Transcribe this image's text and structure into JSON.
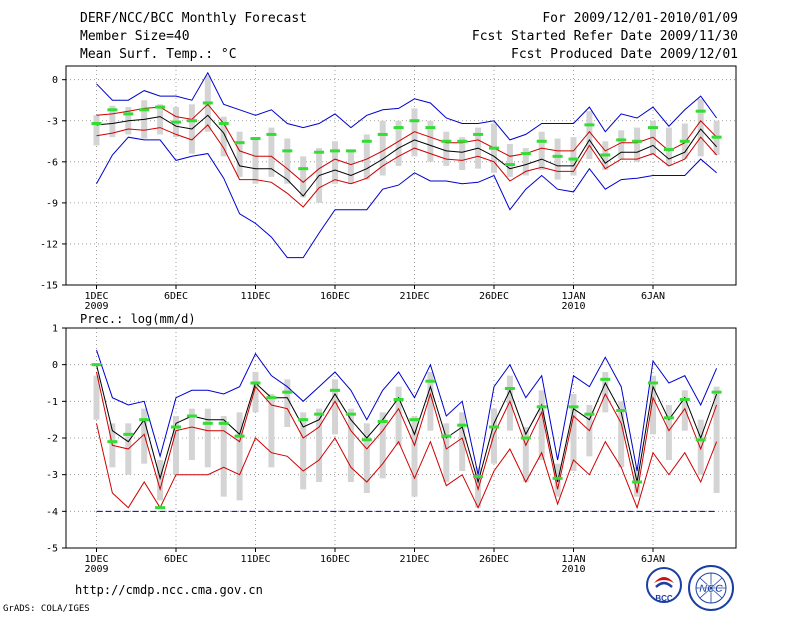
{
  "header": {
    "title": "DERF/NCC/BCC Monthly Forecast",
    "member_size": "Member Size=40",
    "variable": "Mean Surf. Temp.: °C",
    "period": "For 2009/12/01-2010/01/09",
    "started": "Fcst Started Refer Date 2009/11/30",
    "produced": "Fcst Produced Date 2009/12/01"
  },
  "footer": {
    "url": "http://cmdp.ncc.cma.gov.cn",
    "grads": "GrADS: COLA/IGES",
    "logo_bcc": "BCC",
    "logo_ncc": "NCC"
  },
  "colors": {
    "envelope": "#0000d0",
    "spread": "#d00000",
    "mean": "#000000",
    "box": "#d4d4d4",
    "median": "#33dd33",
    "dashed": "#0000a0"
  },
  "chart_data": [
    {
      "type": "line",
      "title": "Mean Surf. Temp.: °C",
      "ylim": [
        -15,
        1
      ],
      "yticks": [
        0,
        -3,
        -6,
        -9,
        -12,
        -15
      ],
      "x_tick_days": [
        1,
        6,
        11,
        16,
        21,
        26,
        31,
        36
      ],
      "x_tick_labels": [
        "1DEC",
        "6DEC",
        "11DEC",
        "16DEC",
        "21DEC",
        "26DEC",
        "1JAN",
        "6JAN"
      ],
      "x_year_labels": [
        {
          "day": 1,
          "label": "2009"
        },
        {
          "day": 31,
          "label": "2010"
        }
      ],
      "days": 40,
      "series": [
        {
          "name": "max",
          "values": [
            -0.3,
            -1.5,
            -1.5,
            -0.8,
            -1.2,
            -1.2,
            -1.5,
            0.5,
            -1.8,
            -2.2,
            -2.6,
            -2.2,
            -3.2,
            -3.5,
            -3.2,
            -2.5,
            -3.5,
            -2.6,
            -2.2,
            -2.1,
            -1.4,
            -1.7,
            -2.8,
            -3.2,
            -3.2,
            -3.0,
            -4.4,
            -4.0,
            -3.2,
            -3.2,
            -3.2,
            -2.0,
            -3.8,
            -2.5,
            -2.8,
            -2.0,
            -3.4,
            -2.2,
            -1.2,
            -2.8
          ]
        },
        {
          "name": "upper",
          "values": [
            -2.6,
            -2.5,
            -2.3,
            -2.1,
            -2.0,
            -2.7,
            -2.9,
            -1.8,
            -3.2,
            -5.2,
            -5.6,
            -5.6,
            -6.5,
            -7.5,
            -6.5,
            -5.8,
            -6.2,
            -5.8,
            -5.2,
            -4.5,
            -3.8,
            -4.2,
            -4.6,
            -4.6,
            -4.4,
            -5.0,
            -5.6,
            -5.4,
            -5.0,
            -5.2,
            -5.2,
            -3.8,
            -5.2,
            -4.6,
            -4.6,
            -4.2,
            -5.2,
            -4.6,
            -3.0,
            -4.2
          ]
        },
        {
          "name": "mean",
          "values": [
            -3.3,
            -3.2,
            -3.0,
            -2.9,
            -2.7,
            -3.4,
            -3.6,
            -2.6,
            -3.9,
            -6.3,
            -6.5,
            -6.5,
            -7.3,
            -8.5,
            -7.0,
            -6.6,
            -7.0,
            -6.5,
            -5.8,
            -5.0,
            -4.4,
            -4.8,
            -5.2,
            -5.3,
            -5.0,
            -5.6,
            -6.5,
            -6.2,
            -5.8,
            -6.3,
            -6.3,
            -4.4,
            -6.1,
            -5.3,
            -5.3,
            -4.8,
            -5.8,
            -5.3,
            -3.6,
            -4.9
          ]
        },
        {
          "name": "lower",
          "values": [
            -4.1,
            -3.9,
            -3.6,
            -3.7,
            -3.5,
            -4.0,
            -4.4,
            -3.3,
            -5.0,
            -7.3,
            -7.3,
            -7.5,
            -8.3,
            -9.3,
            -7.9,
            -7.3,
            -7.6,
            -7.2,
            -6.3,
            -5.6,
            -5.0,
            -5.4,
            -5.8,
            -5.9,
            -5.6,
            -6.0,
            -7.4,
            -6.7,
            -6.4,
            -6.7,
            -6.7,
            -4.8,
            -6.5,
            -5.8,
            -5.8,
            -5.4,
            -6.3,
            -5.8,
            -4.2,
            -5.5
          ]
        },
        {
          "name": "min",
          "values": [
            -7.6,
            -5.5,
            -4.2,
            -4.4,
            -4.4,
            -5.9,
            -5.6,
            -5.4,
            -7.2,
            -9.8,
            -10.5,
            -11.5,
            -13.0,
            -13.0,
            -11.2,
            -9.5,
            -9.5,
            -9.5,
            -8.0,
            -7.7,
            -6.8,
            -7.4,
            -7.4,
            -7.6,
            -7.5,
            -7.0,
            -9.5,
            -8.0,
            -7.0,
            -8.0,
            -8.2,
            -6.5,
            -8.0,
            -7.3,
            -7.2,
            -7.0,
            -7.0,
            -7.0,
            -5.8,
            -6.8
          ]
        }
      ],
      "box_low": [
        -4.8,
        -4.2,
        -4.0,
        -4.3,
        -4.0,
        -4.2,
        -5.4,
        -3.8,
        -5.6,
        -7.1,
        -7.6,
        -7.1,
        -7.6,
        -8.6,
        -9.0,
        -7.6,
        -7.6,
        -7.3,
        -7.0,
        -6.3,
        -5.6,
        -6.0,
        -6.3,
        -6.6,
        -6.5,
        -6.8,
        -7.1,
        -7.0,
        -6.6,
        -7.3,
        -7.0,
        -5.8,
        -6.6,
        -5.8,
        -6.0,
        -5.5,
        -6.3,
        -5.8,
        -5.6,
        -5.5
      ],
      "box_high": [
        -2.6,
        -1.9,
        -2.0,
        -1.5,
        -1.8,
        -2.0,
        -1.8,
        0.3,
        -2.7,
        -3.8,
        -4.2,
        -3.5,
        -4.3,
        -5.6,
        -5.0,
        -4.5,
        -5.2,
        -4.0,
        -3.0,
        -3.0,
        -2.1,
        -3.0,
        -3.8,
        -4.2,
        -3.5,
        -3.2,
        -4.7,
        -5.0,
        -3.8,
        -4.3,
        -4.2,
        -2.3,
        -4.5,
        -3.7,
        -3.5,
        -3.0,
        -3.5,
        -3.2,
        -1.4,
        -3.0
      ],
      "median": [
        -3.2,
        -2.2,
        -2.5,
        -2.2,
        -2.0,
        -3.1,
        -3.0,
        -1.7,
        -3.2,
        -4.6,
        -4.3,
        -4.0,
        -5.2,
        -6.5,
        -5.3,
        -5.2,
        -5.2,
        -4.5,
        -4.0,
        -3.5,
        -3.0,
        -3.5,
        -4.5,
        -4.5,
        -4.0,
        -5.0,
        -6.2,
        -5.4,
        -4.5,
        -5.6,
        -5.8,
        -3.3,
        -5.5,
        -4.4,
        -4.5,
        -3.5,
        -5.1,
        -4.5,
        -2.3,
        -4.2
      ]
    },
    {
      "type": "line",
      "title": "Prec.: log(mm/d)",
      "ylim": [
        -5,
        1
      ],
      "yticks": [
        1,
        0,
        -1,
        -2,
        -3,
        -4,
        -5
      ],
      "x_tick_days": [
        1,
        6,
        11,
        16,
        21,
        26,
        31,
        36
      ],
      "x_tick_labels": [
        "1DEC",
        "6DEC",
        "11DEC",
        "16DEC",
        "21DEC",
        "26DEC",
        "1JAN",
        "6JAN"
      ],
      "x_year_labels": [
        {
          "day": 1,
          "label": "2009"
        },
        {
          "day": 31,
          "label": "2010"
        }
      ],
      "days": 40,
      "baseline": -4,
      "series": [
        {
          "name": "max",
          "values": [
            0.4,
            -0.9,
            -1.1,
            -1.0,
            -2.5,
            -0.9,
            -0.7,
            -0.7,
            -0.8,
            -0.6,
            0.3,
            -0.3,
            -0.6,
            -1.0,
            -0.6,
            -0.2,
            -0.7,
            -1.5,
            -0.7,
            -0.2,
            -0.9,
            0.0,
            -1.4,
            -1.0,
            -3.0,
            -0.6,
            0.0,
            -0.9,
            -0.3,
            -2.6,
            -0.3,
            -0.6,
            0.2,
            -0.6,
            -2.9,
            0.1,
            -0.5,
            -0.3,
            -1.1,
            -0.1
          ]
        },
        {
          "name": "mean",
          "values": [
            0.0,
            -1.8,
            -2.1,
            -1.5,
            -3.1,
            -1.6,
            -1.4,
            -1.5,
            -1.5,
            -1.9,
            -0.5,
            -0.9,
            -0.9,
            -1.7,
            -1.5,
            -0.8,
            -1.5,
            -2.0,
            -1.5,
            -0.9,
            -1.9,
            -0.6,
            -2.0,
            -1.7,
            -3.2,
            -1.6,
            -0.7,
            -1.9,
            -1.1,
            -3.2,
            -1.2,
            -1.5,
            -0.5,
            -1.3,
            -3.2,
            -0.6,
            -1.5,
            -0.9,
            -2.0,
            -0.8
          ]
        },
        {
          "name": "upper",
          "values": [
            -0.2,
            -2.2,
            -2.3,
            -1.9,
            -3.4,
            -1.8,
            -1.7,
            -1.8,
            -1.8,
            -2.1,
            -0.6,
            -1.1,
            -1.2,
            -2.0,
            -1.7,
            -1.0,
            -1.8,
            -2.3,
            -1.8,
            -1.2,
            -2.2,
            -0.8,
            -2.3,
            -2.0,
            -3.4,
            -1.9,
            -1.0,
            -2.2,
            -1.3,
            -3.4,
            -1.4,
            -1.8,
            -0.8,
            -1.6,
            -3.5,
            -0.9,
            -1.8,
            -1.2,
            -2.3,
            -1.1
          ]
        },
        {
          "name": "lower",
          "values": [
            -1.6,
            -3.5,
            -3.9,
            -3.2,
            -3.9,
            -3.0,
            -3.0,
            -3.0,
            -2.8,
            -3.0,
            -2.0,
            -2.4,
            -2.5,
            -2.9,
            -2.6,
            -2.0,
            -2.8,
            -3.2,
            -2.7,
            -2.1,
            -3.1,
            -2.1,
            -3.3,
            -3.0,
            -3.9,
            -2.9,
            -2.3,
            -3.2,
            -2.4,
            -3.8,
            -2.6,
            -3.0,
            -2.1,
            -2.8,
            -3.9,
            -2.4,
            -3.0,
            -2.4,
            -3.2,
            -2.1
          ]
        }
      ],
      "box_low": [
        -1.5,
        -2.8,
        -3.0,
        -2.7,
        -3.7,
        -3.0,
        -2.6,
        -2.8,
        -3.6,
        -3.7,
        -1.3,
        -2.8,
        -1.7,
        -3.4,
        -3.2,
        -1.9,
        -3.2,
        -3.5,
        -3.1,
        -2.2,
        -3.6,
        -1.8,
        -3.2,
        -2.9,
        -3.9,
        -2.7,
        -1.8,
        -3.2,
        -2.6,
        -3.6,
        -2.9,
        -2.5,
        -1.3,
        -2.8,
        -3.6,
        -1.9,
        -2.6,
        -1.8,
        -3.0,
        -3.5
      ],
      "box_high": [
        -0.3,
        -1.6,
        -1.6,
        -1.2,
        -2.6,
        -1.4,
        -1.2,
        -1.2,
        -1.4,
        -1.3,
        -0.2,
        -0.8,
        -0.4,
        -1.3,
        -1.2,
        -0.4,
        -1.2,
        -1.6,
        -1.3,
        -0.6,
        -1.4,
        -0.2,
        -1.6,
        -1.3,
        -2.8,
        -1.2,
        -0.3,
        -1.7,
        -0.7,
        -2.7,
        -0.8,
        -1.1,
        -0.2,
        -1.0,
        -2.8,
        -0.3,
        -1.1,
        -0.7,
        -1.5,
        -0.6
      ],
      "median": [
        0.0,
        -2.1,
        -1.9,
        -1.5,
        -3.9,
        -1.7,
        -1.4,
        -1.6,
        -1.6,
        -1.95,
        -0.5,
        -0.9,
        -0.75,
        -1.5,
        -1.35,
        -0.7,
        -1.35,
        -2.05,
        -1.55,
        -0.95,
        -1.5,
        -0.45,
        -1.95,
        -1.65,
        -3.05,
        -1.7,
        -0.65,
        -2.0,
        -1.15,
        -3.1,
        -1.15,
        -1.35,
        -0.4,
        -1.25,
        -3.2,
        -0.5,
        -1.45,
        -0.95,
        -2.05,
        -0.75
      ]
    }
  ]
}
